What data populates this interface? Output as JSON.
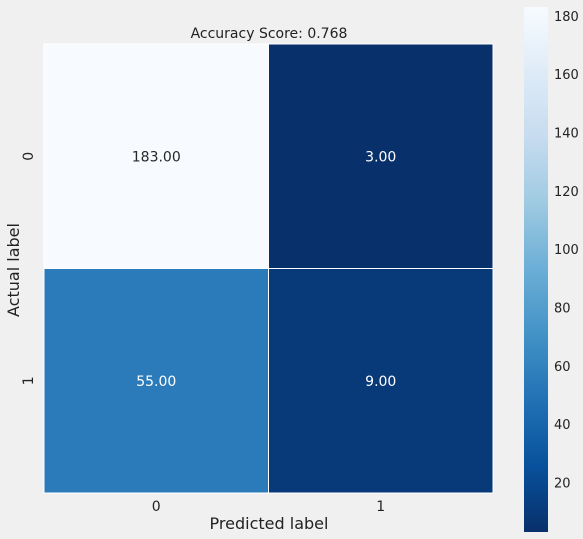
{
  "chart_data": {
    "type": "heatmap",
    "title": "Accuracy Score: 0.768",
    "xlabel": "Predicted label",
    "ylabel": "Actual label",
    "x_categories": [
      "0",
      "1"
    ],
    "y_categories": [
      "0",
      "1"
    ],
    "values": [
      [
        183,
        3
      ],
      [
        55,
        9
      ]
    ],
    "cell_labels": [
      [
        "183.00",
        "3.00"
      ],
      [
        "55.00",
        "9.00"
      ]
    ],
    "colormap": "Blues_r",
    "vmin": 3,
    "vmax": 183,
    "colorbar_ticks": [
      20,
      40,
      60,
      80,
      100,
      120,
      140,
      160,
      180
    ],
    "colors": {
      "background": "#f0f0f0",
      "cmap_stops": [
        "#08306b",
        "#08519c",
        "#2171b5",
        "#4292c6",
        "#6baed6",
        "#9ecae1",
        "#c6dbef",
        "#deebf7",
        "#f7fbff"
      ]
    }
  }
}
